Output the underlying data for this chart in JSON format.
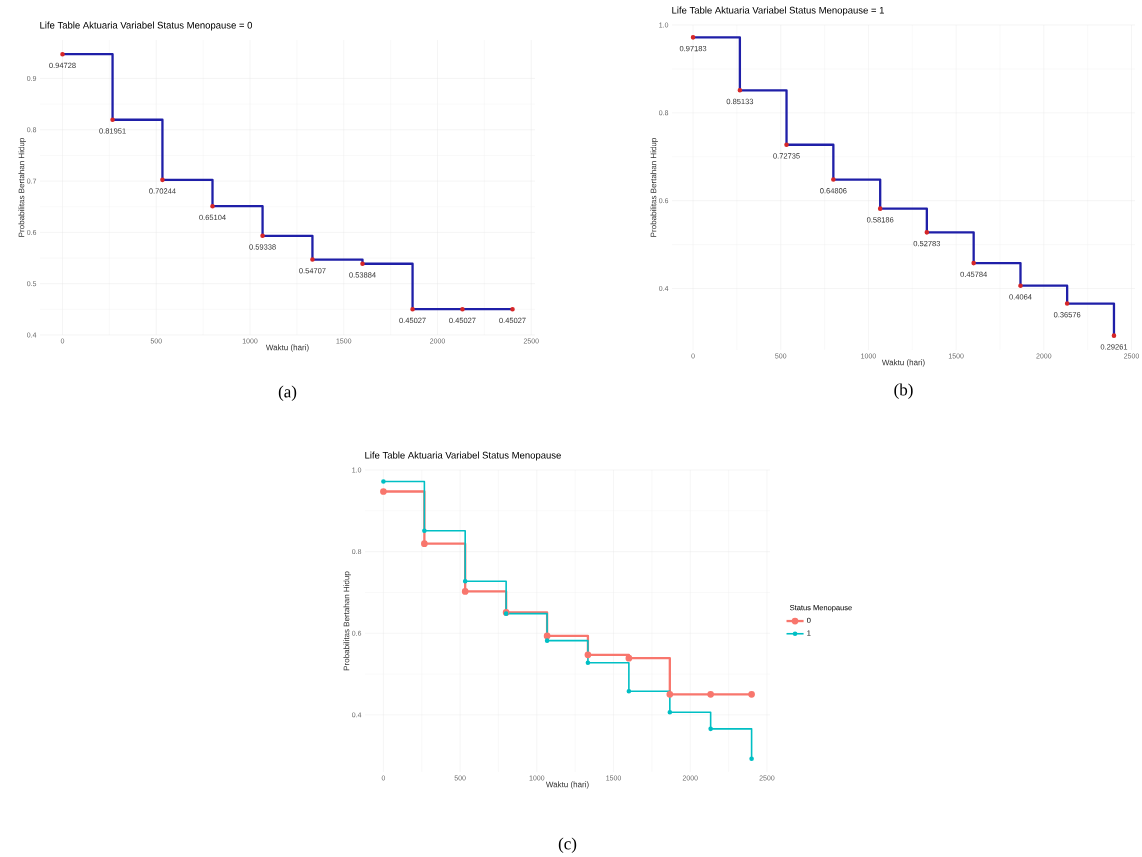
{
  "chart_data": [
    {
      "type": "step",
      "title": "Life Table Aktuaria Variabel Status Menopause = 0",
      "xlabel": "Waktu (hari)",
      "ylabel": "Probabilitas Bertahan Hidup",
      "annotations": [
        "(a)"
      ],
      "grid": true,
      "x": [
        0,
        267,
        533,
        800,
        1067,
        1333,
        1600,
        1867,
        2133,
        2400
      ],
      "series": [
        {
          "type": "step",
          "color": "#1f1fa8",
          "marker": "none",
          "values": [
            0.94728,
            0.81951,
            0.70244,
            0.65104,
            0.59338,
            0.54707,
            0.53884,
            0.45027,
            0.45027,
            0.45027
          ]
        },
        {
          "type": "scatter",
          "color": "#d62728",
          "marker": "circle",
          "values": [
            0.94728,
            0.81951,
            0.70244,
            0.65104,
            0.59338,
            0.54707,
            0.53884,
            0.45027,
            0.45027,
            0.45027
          ],
          "value_labels": [
            "0.94728",
            "0.81951",
            "0.70244",
            "0.65104",
            "0.59338",
            "0.54707",
            "0.53884",
            "0.45027",
            "0.45027",
            "0.45027"
          ]
        }
      ],
      "xlim": [
        -120,
        2520
      ],
      "ylim": [
        0.4,
        0.975
      ],
      "xticks": [
        0,
        500,
        1000,
        1500,
        2000,
        2500
      ],
      "yticks": [
        0.4,
        0.5,
        0.6,
        0.7,
        0.8,
        0.9
      ]
    },
    {
      "type": "step",
      "title": "Life Table Aktuaria Variabel Status Menopause = 1",
      "xlabel": "Waktu (hari)",
      "ylabel": "Probabilitas Bertahan Hidup",
      "annotations": [
        "(b)"
      ],
      "grid": true,
      "x": [
        0,
        267,
        533,
        800,
        1067,
        1333,
        1600,
        1867,
        2133,
        2400
      ],
      "series": [
        {
          "type": "step",
          "color": "#1f1fa8",
          "marker": "none",
          "values": [
            0.97183,
            0.85133,
            0.72735,
            0.64806,
            0.58186,
            0.52783,
            0.45784,
            0.4064,
            0.36576,
            0.29261
          ]
        },
        {
          "type": "scatter",
          "color": "#d62728",
          "marker": "circle",
          "values": [
            0.97183,
            0.85133,
            0.72735,
            0.64806,
            0.58186,
            0.52783,
            0.45784,
            0.4064,
            0.36576,
            0.29261
          ],
          "value_labels": [
            "0.97183",
            "0.85133",
            "0.72735",
            "0.64806",
            "0.58186",
            "0.52783",
            "0.45784",
            "0.4064",
            "0.36576",
            "0.29261"
          ]
        }
      ],
      "xlim": [
        -120,
        2520
      ],
      "ylim": [
        0.26,
        1.0
      ],
      "xticks": [
        0,
        500,
        1000,
        1500,
        2000,
        2500
      ],
      "yticks": [
        0.4,
        0.6,
        0.8,
        {
          "value": 1.0,
          "label": "1.0"
        }
      ]
    },
    {
      "type": "step",
      "title": "Life Table Aktuaria Variabel Status Menopause",
      "xlabel": "Waktu (hari)",
      "ylabel": "Probabilitas Bertahan Hidup",
      "annotations": [
        "(c)"
      ],
      "grid": true,
      "legend": "right",
      "legend_title": "Status Menopause",
      "marker": "circle",
      "x": [
        0,
        267,
        533,
        800,
        1067,
        1333,
        1600,
        1867,
        2133,
        2400
      ],
      "series": [
        {
          "name": "0",
          "color": "#f8766d",
          "values": [
            0.94728,
            0.81951,
            0.70244,
            0.65104,
            0.59338,
            0.54707,
            0.53884,
            0.45027,
            0.45027,
            0.45027
          ]
        },
        {
          "name": "1",
          "color": "#00bfc4",
          "values": [
            0.97183,
            0.85133,
            0.72735,
            0.64806,
            0.58186,
            0.52783,
            0.45784,
            0.4064,
            0.36576,
            0.29261
          ]
        }
      ],
      "xlim": [
        -120,
        2520
      ],
      "ylim": [
        0.26,
        1.0
      ],
      "xticks": [
        0,
        500,
        1000,
        1500,
        2000,
        2500
      ],
      "yticks": [
        0.4,
        0.6,
        0.8,
        {
          "value": 1.0,
          "label": "1.0"
        }
      ]
    }
  ]
}
